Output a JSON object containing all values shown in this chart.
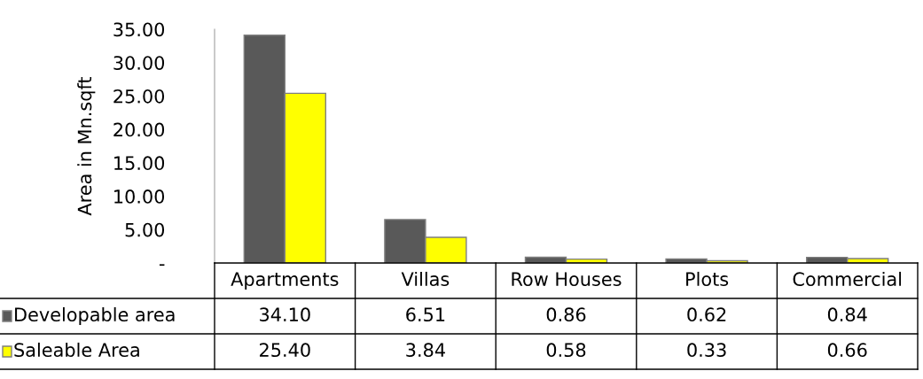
{
  "chart_data": {
    "type": "bar",
    "ylabel": "Area in Mn.sqft",
    "categories": [
      "Apartments",
      "Villas",
      "Row Houses",
      "Plots",
      "Commercial"
    ],
    "series": [
      {
        "name": "Developable area",
        "color": "#595959",
        "values": [
          34.1,
          6.51,
          0.86,
          0.62,
          0.84
        ],
        "value_labels": [
          "34.10",
          "6.51",
          "0.86",
          "0.62",
          "0.84"
        ]
      },
      {
        "name": "Saleable Area",
        "color": "#ffff00",
        "values": [
          25.4,
          3.84,
          0.58,
          0.33,
          0.66
        ],
        "value_labels": [
          "25.40",
          "3.84",
          "0.58",
          "0.33",
          "0.66"
        ]
      }
    ],
    "ylim": [
      0,
      35
    ],
    "yticks": [
      {
        "value": 0,
        "label": "-"
      },
      {
        "value": 5,
        "label": "5.00"
      },
      {
        "value": 10,
        "label": "10.00"
      },
      {
        "value": 15,
        "label": "15.00"
      },
      {
        "value": 20,
        "label": "20.00"
      },
      {
        "value": 25,
        "label": "25.00"
      },
      {
        "value": 30,
        "label": "30.00"
      },
      {
        "value": 35,
        "label": "35.00"
      }
    ],
    "grid": false,
    "legend": "bottom"
  }
}
